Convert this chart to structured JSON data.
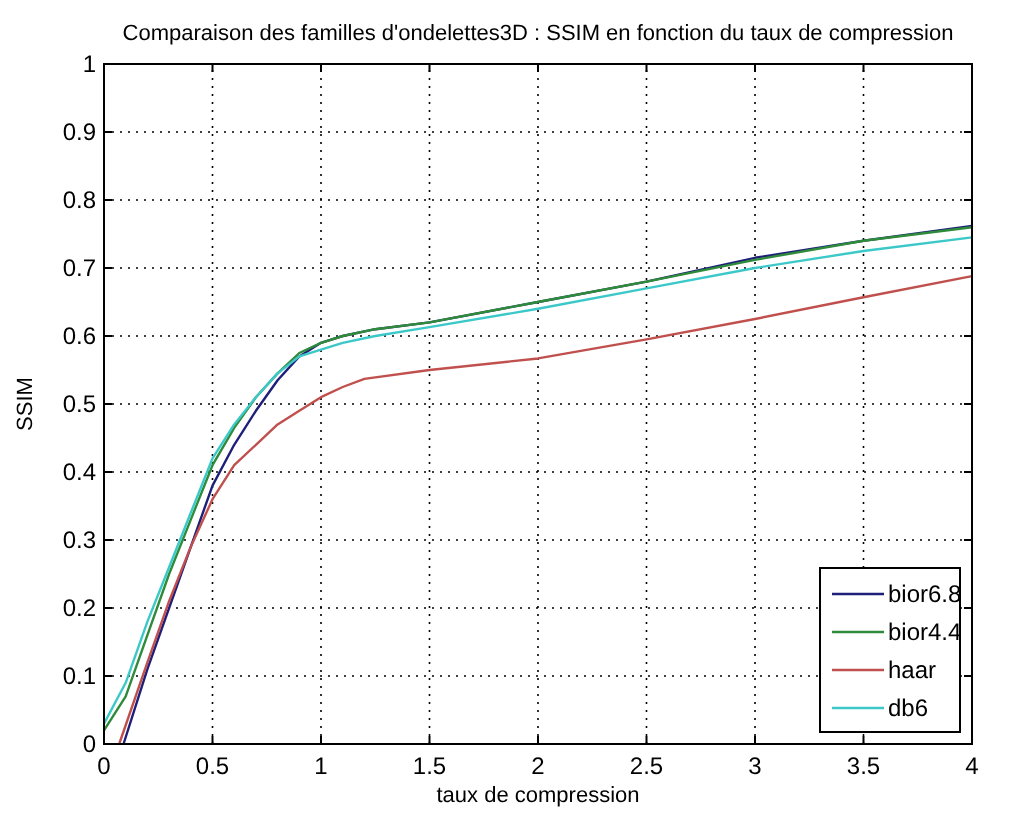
{
  "chart_data": {
    "type": "line",
    "title": "Comparaison des familles d'ondelettes3D : SSIM en fonction du taux de compression",
    "xlabel": "taux de compression",
    "ylabel": "SSIM",
    "xlim": [
      0,
      4
    ],
    "xticks": [
      0,
      0.5,
      1,
      1.5,
      2,
      2.5,
      3,
      3.5,
      4
    ],
    "ylim": [
      0,
      1
    ],
    "yticks": [
      0,
      0.1,
      0.2,
      0.3,
      0.4,
      0.5,
      0.6,
      0.7,
      0.8,
      0.9,
      1
    ],
    "grid": true,
    "legend": "bottom right",
    "line_style": "solid",
    "series": [
      {
        "name": "bior6.8",
        "color": "#1f1f7a",
        "x": [
          0.09,
          0.2,
          0.3,
          0.4,
          0.5,
          0.6,
          0.7,
          0.8,
          0.9,
          1,
          1.1,
          1.25,
          1.5,
          2,
          2.5,
          3,
          3.5,
          4
        ],
        "values": [
          0,
          0.11,
          0.2,
          0.29,
          0.38,
          0.44,
          0.49,
          0.535,
          0.57,
          0.59,
          0.6,
          0.61,
          0.62,
          0.65,
          0.68,
          0.715,
          0.74,
          0.762
        ]
      },
      {
        "name": "bior4.4",
        "color": "#2e8b3a",
        "x": [
          0,
          0.1,
          0.2,
          0.3,
          0.4,
          0.5,
          0.6,
          0.7,
          0.8,
          0.9,
          1,
          1.1,
          1.25,
          1.5,
          2,
          2.5,
          3,
          3.5,
          4
        ],
        "values": [
          0.02,
          0.07,
          0.16,
          0.25,
          0.33,
          0.41,
          0.465,
          0.51,
          0.545,
          0.575,
          0.59,
          0.6,
          0.61,
          0.62,
          0.65,
          0.68,
          0.712,
          0.74,
          0.76
        ]
      },
      {
        "name": "haar",
        "color": "#c0504d",
        "x": [
          0.07,
          0.2,
          0.3,
          0.4,
          0.5,
          0.6,
          0.7,
          0.8,
          0.9,
          1,
          1.1,
          1.2,
          1.5,
          2,
          2.5,
          3,
          3.5,
          4
        ],
        "values": [
          0,
          0.12,
          0.21,
          0.29,
          0.36,
          0.41,
          0.44,
          0.47,
          0.49,
          0.51,
          0.525,
          0.537,
          0.55,
          0.567,
          0.595,
          0.625,
          0.657,
          0.688
        ]
      },
      {
        "name": "db6",
        "color": "#3cc8c8",
        "x": [
          0,
          0.1,
          0.2,
          0.3,
          0.4,
          0.5,
          0.6,
          0.7,
          0.8,
          0.9,
          1,
          1.1,
          1.25,
          1.5,
          2,
          2.5,
          3,
          3.5,
          4
        ],
        "values": [
          0.03,
          0.09,
          0.18,
          0.26,
          0.34,
          0.42,
          0.47,
          0.51,
          0.545,
          0.57,
          0.58,
          0.59,
          0.6,
          0.613,
          0.64,
          0.67,
          0.7,
          0.725,
          0.745
        ]
      }
    ]
  }
}
